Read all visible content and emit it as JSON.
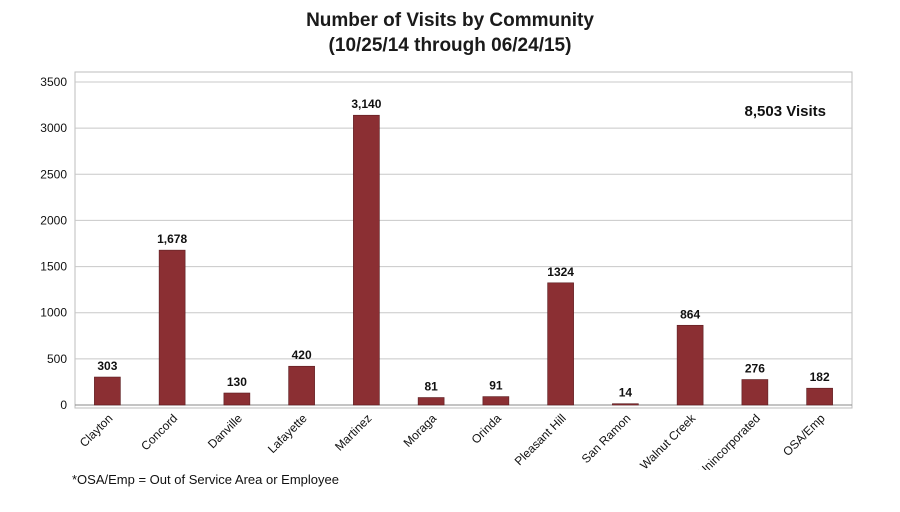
{
  "chart_data": {
    "type": "bar",
    "title": "Number of Visits by Community",
    "subtitle": "(10/25/14 through 06/24/15)",
    "annotation": "8,503 Visits",
    "categories": [
      "Clayton",
      "Concord",
      "Danville",
      "Lafayette",
      "Martinez",
      "Moraga",
      "Orinda",
      "Pleasant Hill",
      "San Ramon",
      "Walnut Creek",
      "Unincorporated",
      "OSA/Emp"
    ],
    "values": [
      303,
      1678,
      130,
      420,
      3140,
      81,
      91,
      1324,
      14,
      864,
      276,
      182
    ],
    "data_labels": [
      "303",
      "1,678",
      "130",
      "420",
      "3,140",
      "81",
      "91",
      "1324",
      "14",
      "864",
      "276",
      "182"
    ],
    "y_ticks": [
      "0",
      "500",
      "1000",
      "1500",
      "2000",
      "2500",
      "3000",
      "3500"
    ],
    "ylim": [
      0,
      3500
    ],
    "grid": true,
    "legend": "none",
    "bar_color": "#8b2f33",
    "footnote": "*OSA/Emp = Out of Service Area or Employee"
  }
}
